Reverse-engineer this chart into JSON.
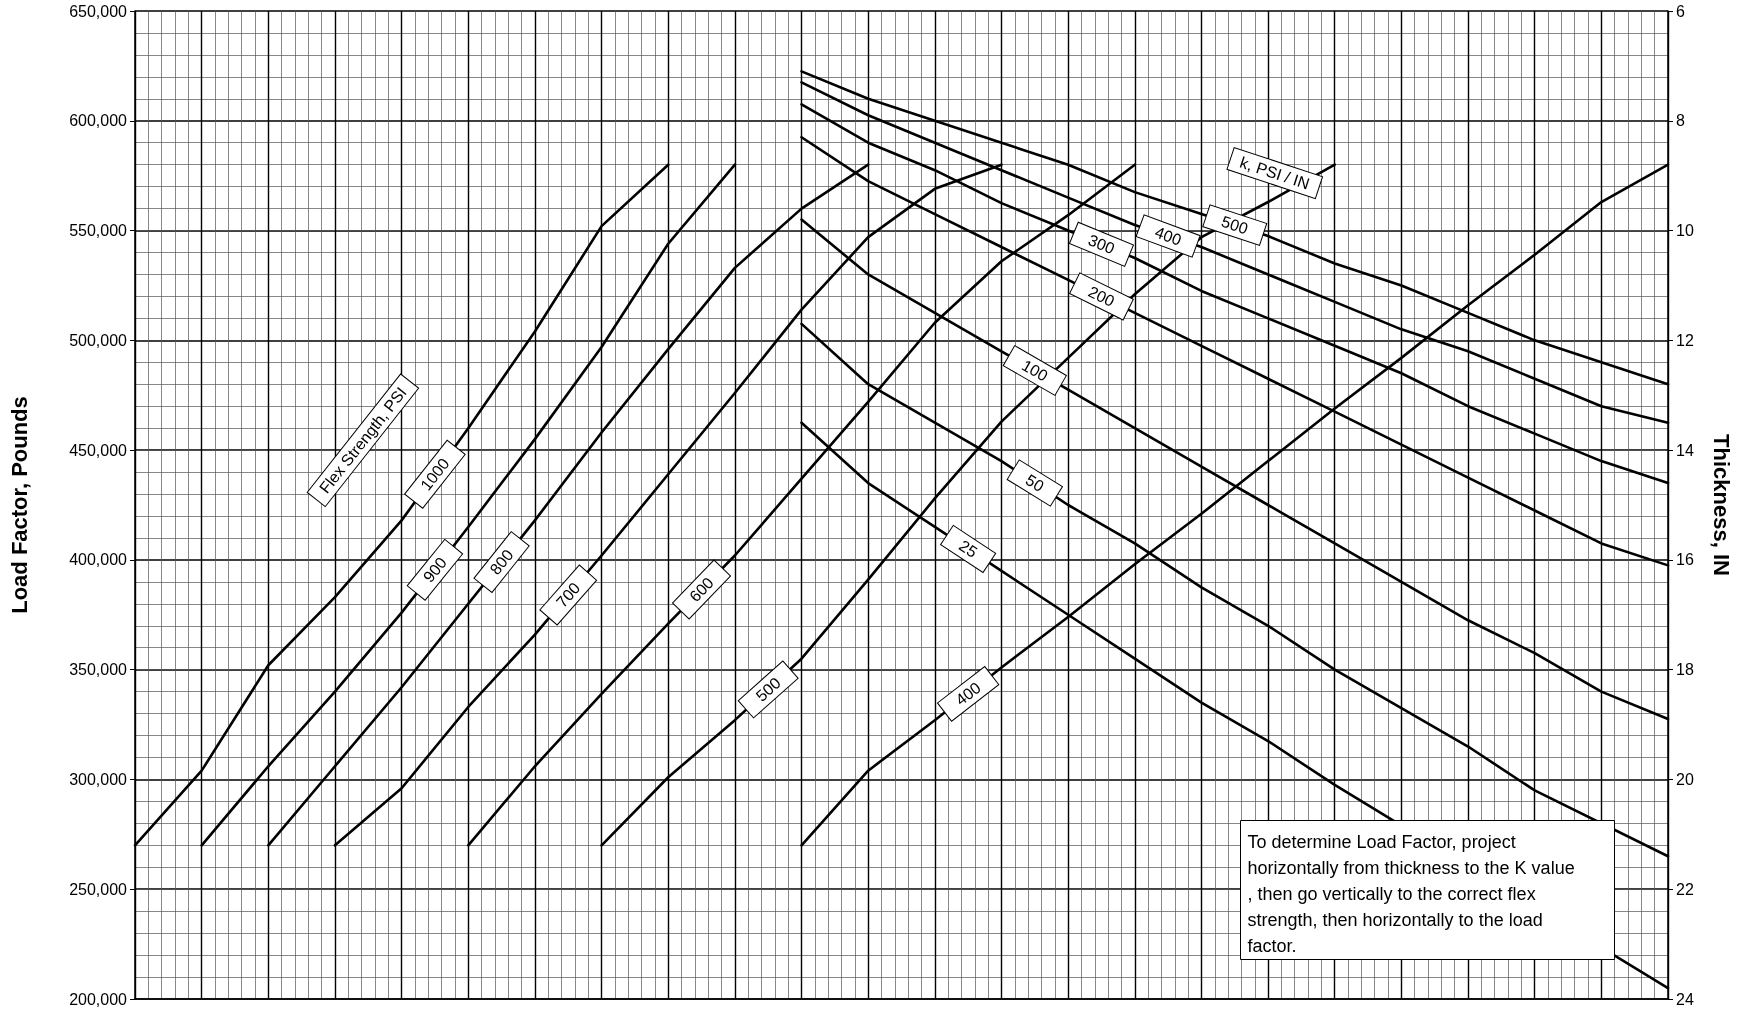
{
  "chart_data": {
    "type": "line",
    "ylabel": "Load Factor, Pounds",
    "y2label": "Thickness, IN",
    "categories": [
      null,
      null,
      null,
      null,
      null,
      null,
      null,
      null,
      null,
      null,
      null,
      null,
      null,
      null,
      null,
      null,
      null,
      null,
      null,
      null,
      null,
      null,
      null,
      null
    ],
    "ylim": [
      200000,
      650000
    ],
    "yticks": [
      {
        "value": 200000,
        "label": "200,000"
      },
      {
        "value": 250000,
        "label": "250,000"
      },
      {
        "value": 300000,
        "label": "300,000"
      },
      {
        "value": 350000,
        "label": "350,000"
      },
      {
        "value": 400000,
        "label": "400,000"
      },
      {
        "value": 450000,
        "label": "450,000"
      },
      {
        "value": 500000,
        "label": "500,000"
      },
      {
        "value": 550000,
        "label": "550,000"
      },
      {
        "value": 600000,
        "label": "600,000"
      },
      {
        "value": 650000,
        "label": "650,000"
      }
    ],
    "y2lim": [
      24,
      6
    ],
    "y2ticks": [
      6,
      8,
      10,
      12,
      14,
      16,
      18,
      20,
      22,
      24
    ],
    "grid": true,
    "marker": "none",
    "line_style": "solid",
    "series": [
      {
        "name": "1000",
        "color": "#000000",
        "values": [
          270000,
          304000,
          352000,
          383000,
          418000,
          460000,
          504000,
          552000,
          580000,
          null,
          null,
          null,
          null,
          null,
          null,
          null,
          null,
          null,
          null,
          null,
          null,
          null,
          null,
          null
        ]
      },
      {
        "name": "900",
        "color": "#000000",
        "values": [
          null,
          270000,
          306000,
          340000,
          376000,
          415000,
          455000,
          497000,
          544000,
          580000,
          null,
          null,
          null,
          null,
          null,
          null,
          null,
          null,
          null,
          null,
          null,
          null,
          null,
          null
        ]
      },
      {
        "name": "800",
        "color": "#000000",
        "values": [
          null,
          null,
          270000,
          306000,
          342000,
          380000,
          418000,
          458000,
          496000,
          533000,
          560000,
          580000,
          null,
          null,
          null,
          null,
          null,
          null,
          null,
          null,
          null,
          null,
          null,
          null
        ]
      },
      {
        "name": "700",
        "color": "#000000",
        "values": [
          null,
          null,
          null,
          270000,
          296000,
          333000,
          366000,
          402000,
          439000,
          476000,
          514000,
          547000,
          569000,
          580000,
          null,
          null,
          null,
          null,
          null,
          null,
          null,
          null,
          null,
          null
        ]
      },
      {
        "name": "600",
        "color": "#000000",
        "values": [
          null,
          null,
          null,
          null,
          null,
          270000,
          306000,
          339000,
          371000,
          402000,
          437000,
          472000,
          508000,
          536000,
          557000,
          580000,
          null,
          null,
          null,
          null,
          null,
          null,
          null,
          null
        ]
      },
      {
        "name": "500",
        "color": "#000000",
        "values": [
          null,
          null,
          null,
          null,
          null,
          null,
          null,
          270000,
          301000,
          327000,
          355000,
          391000,
          428000,
          463000,
          492000,
          521000,
          547000,
          563000,
          580000,
          null,
          null,
          null,
          null,
          null
        ]
      },
      {
        "name": "400",
        "color": "#000000",
        "values": [
          null,
          null,
          null,
          null,
          null,
          null,
          null,
          null,
          null,
          null,
          270000,
          304000,
          327000,
          351000,
          374000,
          398000,
          421000,
          445000,
          469000,
          492000,
          516000,
          539000,
          563000,
          580000
        ]
      },
      {
        "name": "500",
        "color": "#000000",
        "axis": "y2",
        "values": [
          null,
          null,
          null,
          null,
          null,
          null,
          null,
          null,
          null,
          null,
          7.1,
          7.6,
          8.0,
          8.4,
          8.8,
          9.3,
          9.7,
          10.1,
          10.6,
          11.0,
          11.5,
          12.0,
          12.4,
          12.8
        ]
      },
      {
        "name": "400",
        "color": "#000000",
        "axis": "y2",
        "values": [
          null,
          null,
          null,
          null,
          null,
          null,
          null,
          null,
          null,
          null,
          7.3,
          7.9,
          8.4,
          8.9,
          9.4,
          9.9,
          10.3,
          10.8,
          11.3,
          11.8,
          12.2,
          12.7,
          13.2,
          13.5
        ]
      },
      {
        "name": "300",
        "color": "#000000",
        "axis": "y2",
        "values": [
          null,
          null,
          null,
          null,
          null,
          null,
          null,
          null,
          null,
          null,
          7.7,
          8.4,
          8.9,
          9.5,
          10.0,
          10.5,
          11.1,
          11.6,
          12.1,
          12.6,
          13.2,
          13.7,
          14.2,
          14.6
        ]
      },
      {
        "name": "200",
        "color": "#000000",
        "axis": "y2",
        "values": [
          null,
          null,
          null,
          null,
          null,
          null,
          null,
          null,
          null,
          null,
          8.3,
          9.1,
          9.7,
          10.3,
          10.9,
          11.5,
          12.1,
          12.7,
          13.3,
          13.9,
          14.5,
          15.1,
          15.7,
          16.1
        ]
      },
      {
        "name": "100",
        "color": "#000000",
        "axis": "y2",
        "values": [
          null,
          null,
          null,
          null,
          null,
          null,
          null,
          null,
          null,
          null,
          9.8,
          10.8,
          11.5,
          12.2,
          12.9,
          13.6,
          14.3,
          15.0,
          15.7,
          16.4,
          17.1,
          17.7,
          18.4,
          18.9
        ]
      },
      {
        "name": "50",
        "color": "#000000",
        "axis": "y2",
        "values": [
          null,
          null,
          null,
          null,
          null,
          null,
          null,
          null,
          null,
          null,
          11.7,
          12.8,
          13.5,
          14.2,
          15.0,
          15.7,
          16.5,
          17.2,
          18.0,
          18.7,
          19.4,
          20.2,
          null,
          21.4
        ]
      },
      {
        "name": "25",
        "color": "#000000",
        "axis": "y2",
        "values": [
          null,
          null,
          null,
          null,
          null,
          null,
          null,
          null,
          null,
          null,
          13.5,
          14.6,
          15.4,
          16.2,
          17.0,
          17.8,
          18.6,
          19.3,
          20.1,
          null,
          null,
          null,
          null,
          23.8
        ]
      }
    ],
    "annotations": [
      "Flex Strength, PSI",
      "k, PSI / IN",
      "To determine Load Factor, project horizontally from thickness to the K value, then go vertically to the correct flex strength, then horizontally to the load factor."
    ]
  }
}
